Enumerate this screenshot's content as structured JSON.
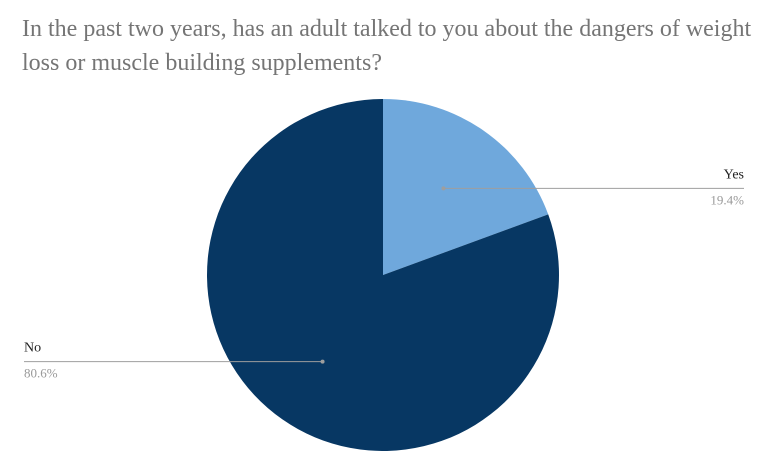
{
  "chart_data": {
    "type": "pie",
    "title": "In the past two years, has an adult talked to you about the dangers of weight loss or muscle building supplements?",
    "slices": [
      {
        "label": "Yes",
        "value": 19.4,
        "display": "19.4%",
        "color": "#6fa8dc"
      },
      {
        "label": "No",
        "value": 80.6,
        "display": "80.6%",
        "color": "#073763"
      }
    ],
    "start_angle_deg": 0,
    "direction": "clockwise",
    "legend": "none"
  }
}
